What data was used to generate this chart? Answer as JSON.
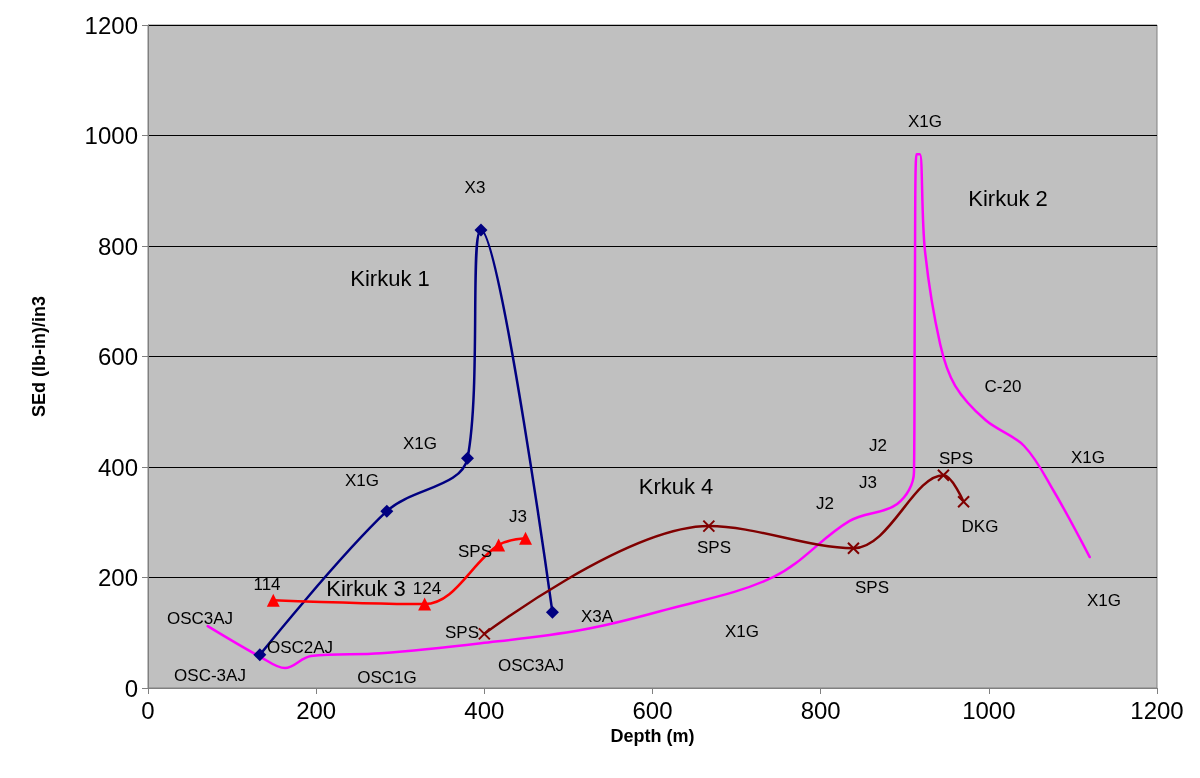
{
  "chart_data": {
    "type": "line",
    "xlabel": "Depth (m)",
    "ylabel": "SEd (lb-in)/in3",
    "xlim": [
      0,
      1200
    ],
    "xticks": [
      0,
      200,
      400,
      600,
      800,
      1000,
      1200
    ],
    "ylim": [
      0,
      1200
    ],
    "yticks": [
      0,
      200,
      400,
      600,
      800,
      1000,
      1200
    ],
    "grid": "y",
    "line_style": "solid",
    "series": [
      {
        "name": "Kirkuk 1",
        "color": "#000080",
        "marker": "diamond",
        "x": [
          133,
          284,
          380,
          396,
          481
        ],
        "values": [
          60,
          320,
          416,
          829,
          137
        ]
      },
      {
        "name": "Kirkuk 2",
        "color": "#ff00ff",
        "marker": "none",
        "x": [
          71,
          134,
          163,
          194,
          277,
          396,
          515,
          609,
          744,
          834,
          891,
          911,
          912,
          914,
          918,
          924,
          942,
          960,
          996,
          1042,
          1077,
          1120
        ],
        "values": [
          112,
          56,
          36,
          58,
          63,
          81,
          105,
          139,
          201,
          302,
          333,
          391,
          700,
          966,
          966,
          792,
          623,
          547,
          485,
          438,
          357,
          237
        ]
      },
      {
        "name": "Kirkuk 3",
        "color": "#ff0000",
        "marker": "triangle",
        "x": [
          149,
          329,
          417,
          449
        ],
        "values": [
          159,
          152,
          259,
          271
        ]
      },
      {
        "name": "Krkuk 4",
        "color": "#800000",
        "marker": "cross",
        "x": [
          400,
          667,
          839,
          946,
          970
        ],
        "values": [
          98,
          293,
          253,
          385,
          337
        ]
      }
    ],
    "annotations": [
      "X3",
      "X1G",
      "X1G",
      "X3A",
      "114",
      "124",
      "SPS",
      "J3",
      "OSC3AJ",
      "OSC2AJ",
      "OSC-3AJ",
      "OSC1G",
      "SPS",
      "OSC3AJ",
      "X1G",
      "SPS",
      "J2",
      "J2",
      "J3",
      "SPS",
      "SPS",
      "DKG",
      "C-20",
      "X1G",
      "X1G",
      "X1G"
    ]
  }
}
